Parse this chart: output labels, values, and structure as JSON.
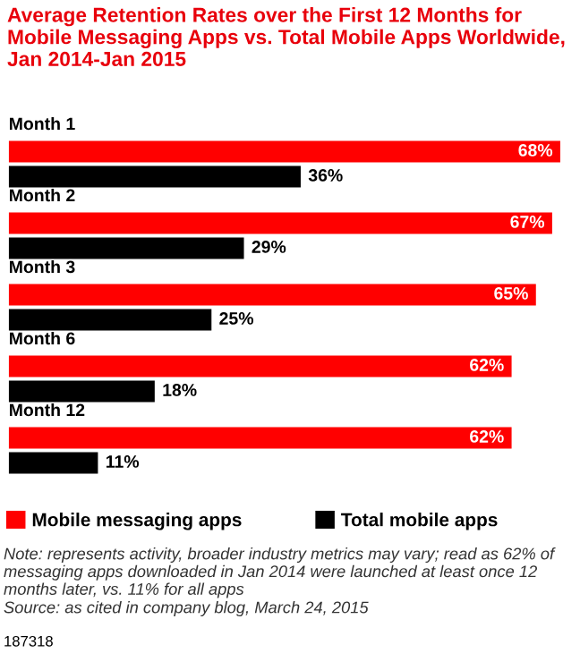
{
  "chart_data": {
    "type": "bar",
    "orientation": "horizontal",
    "title": "Average Retention Rates over the First 12 Months for Mobile Messaging Apps vs. Total Mobile Apps Worldwide, Jan 2014-Jan 2015",
    "categories": [
      "Month 1",
      "Month 2",
      "Month 3",
      "Month 6",
      "Month 12"
    ],
    "series": [
      {
        "name": "Mobile messaging apps",
        "color": "#ff0000",
        "values": [
          68,
          67,
          65,
          62,
          62
        ],
        "value_labels": [
          "68%",
          "67%",
          "65%",
          "62%",
          "62%"
        ]
      },
      {
        "name": "Total mobile apps",
        "color": "#000000",
        "values": [
          36,
          29,
          25,
          18,
          11
        ],
        "value_labels": [
          "36%",
          "29%",
          "25%",
          "18%",
          "11%"
        ]
      }
    ],
    "legend": "bottom",
    "annotations": [
      "Note: represents activity, broader industry metrics may vary; read as 62% of messaging apps downloaded in Jan 2014 were launched at least once 12 months later, vs. 11% for all apps",
      "Source: as cited in company blog, March 24, 2015",
      "187318"
    ]
  }
}
